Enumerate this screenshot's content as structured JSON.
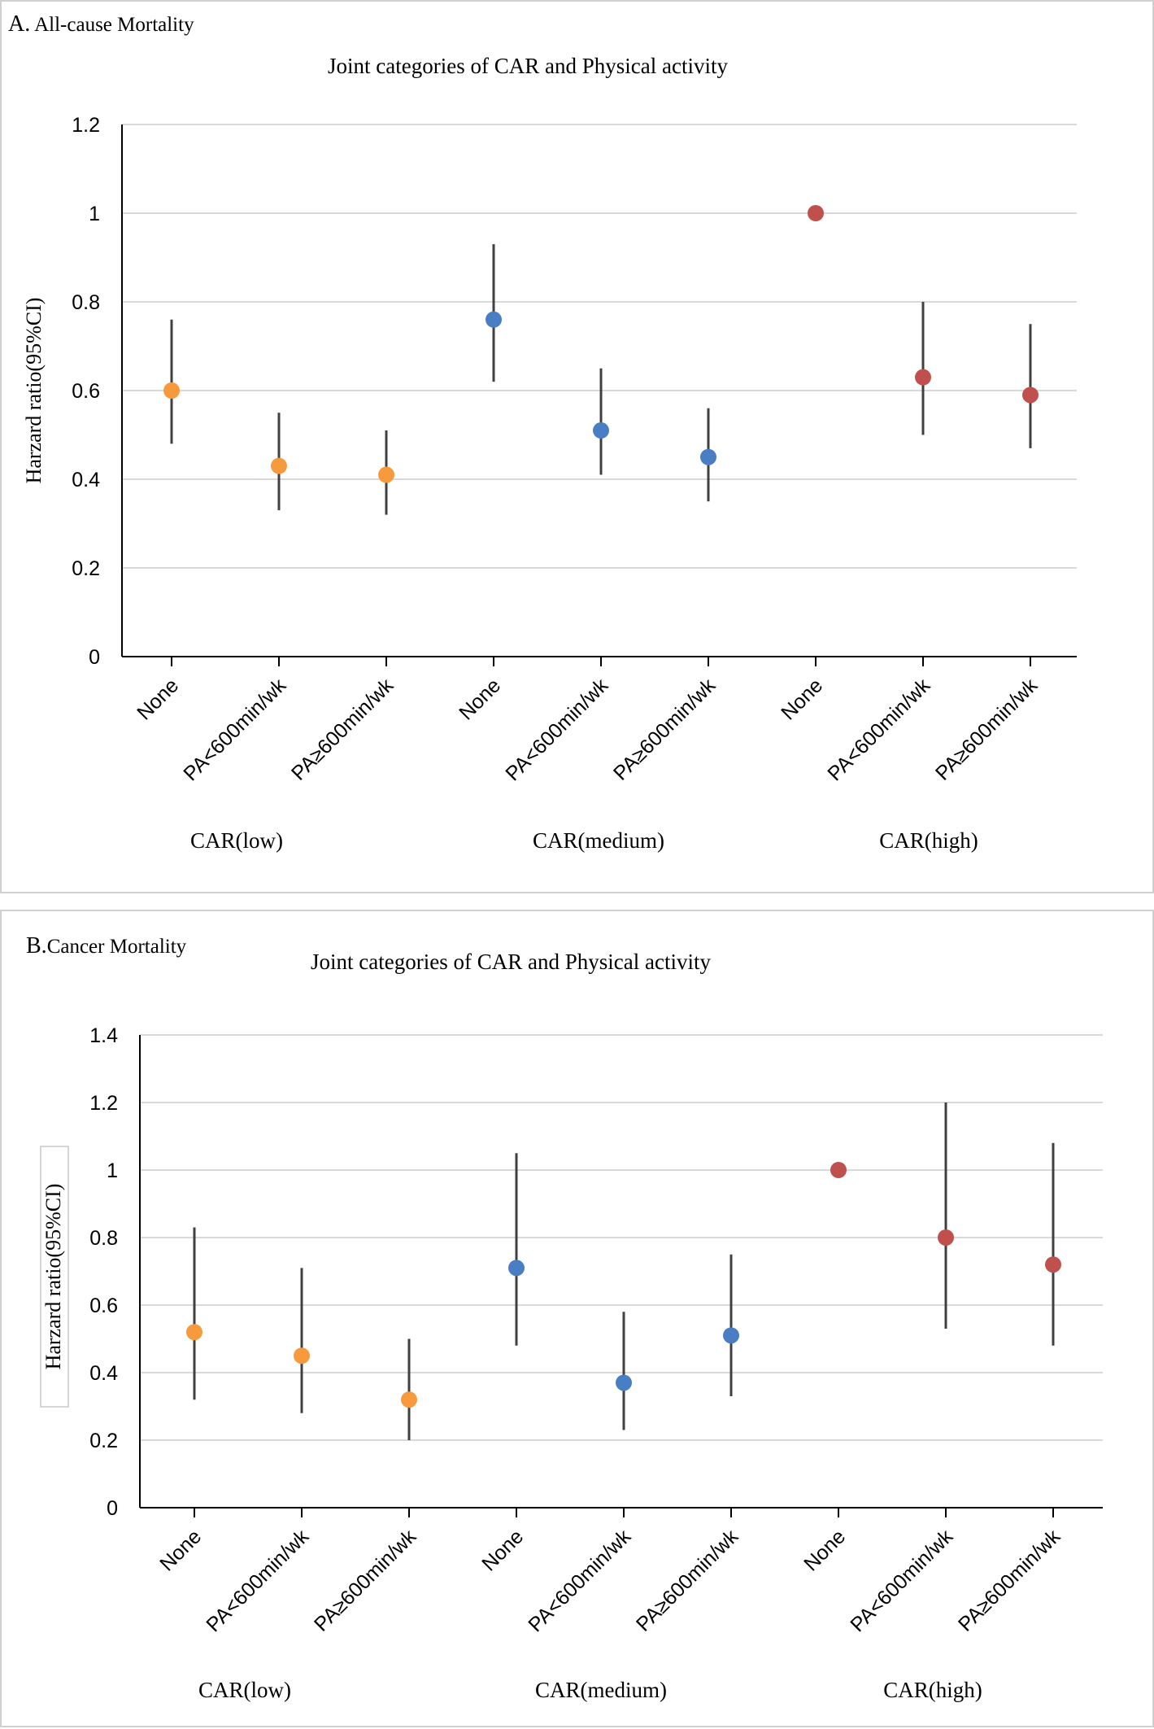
{
  "chart_data": [
    {
      "type": "scatter",
      "panel_label": "A.",
      "panel_title": "All-cause Mortality",
      "title": "Joint categories of CAR and Physical activity",
      "ylabel": "Harzard  ratio(95%CI)",
      "ylim": [
        0,
        1.2
      ],
      "yticks": [
        "0",
        "0.2",
        "0.4",
        "0.6",
        "0.8",
        "1",
        "1.2"
      ],
      "ytick_values": [
        0,
        0.2,
        0.4,
        0.6,
        0.8,
        1,
        1.2
      ],
      "categories": [
        "None",
        "PA<600min/wk",
        "PA≥600min/wk",
        "None",
        "PA<600min/wk",
        "PA≥600min/wk",
        "None",
        "PA<600min/wk",
        "PA≥600min/wk"
      ],
      "groups": [
        "CAR(low)",
        "CAR(medium)",
        "CAR(high)"
      ],
      "group_colors": [
        "#f79a3e",
        "#4a7ec4",
        "#c0504d"
      ],
      "points": [
        {
          "hr": 0.6,
          "lower": 0.48,
          "upper": 0.76
        },
        {
          "hr": 0.43,
          "lower": 0.33,
          "upper": 0.55
        },
        {
          "hr": 0.41,
          "lower": 0.32,
          "upper": 0.51
        },
        {
          "hr": 0.76,
          "lower": 0.62,
          "upper": 0.93
        },
        {
          "hr": 0.51,
          "lower": 0.41,
          "upper": 0.65
        },
        {
          "hr": 0.45,
          "lower": 0.35,
          "upper": 0.56
        },
        {
          "hr": 1.0,
          "lower": 1.0,
          "upper": 1.0
        },
        {
          "hr": 0.63,
          "lower": 0.5,
          "upper": 0.8
        },
        {
          "hr": 0.59,
          "lower": 0.47,
          "upper": 0.75
        }
      ]
    },
    {
      "type": "scatter",
      "panel_label": "B.",
      "panel_title": "Cancer Mortality",
      "title": "Joint categories of CAR and Physical activity",
      "ylabel": "Harzard  ratio(95%CI)",
      "ylim": [
        0,
        1.4
      ],
      "yticks": [
        "0",
        "0.2",
        "0.4",
        "0.6",
        "0.8",
        "1",
        "1.2",
        "1.4"
      ],
      "ytick_values": [
        0,
        0.2,
        0.4,
        0.6,
        0.8,
        1,
        1.2,
        1.4
      ],
      "categories": [
        "None",
        "PA<600min/wk",
        "PA≥600min/wk",
        "None",
        "PA<600min/wk",
        "PA≥600min/wk",
        "None",
        "PA<600min/wk",
        "PA≥600min/wk"
      ],
      "groups": [
        "CAR(low)",
        "CAR(medium)",
        "CAR(high)"
      ],
      "group_colors": [
        "#f79a3e",
        "#4a7ec4",
        "#c0504d"
      ],
      "points": [
        {
          "hr": 0.52,
          "lower": 0.32,
          "upper": 0.83
        },
        {
          "hr": 0.45,
          "lower": 0.28,
          "upper": 0.71
        },
        {
          "hr": 0.32,
          "lower": 0.2,
          "upper": 0.5
        },
        {
          "hr": 0.71,
          "lower": 0.48,
          "upper": 1.05
        },
        {
          "hr": 0.37,
          "lower": 0.23,
          "upper": 0.58
        },
        {
          "hr": 0.51,
          "lower": 0.33,
          "upper": 0.75
        },
        {
          "hr": 1.0,
          "lower": 1.0,
          "upper": 1.0
        },
        {
          "hr": 0.8,
          "lower": 0.53,
          "upper": 1.2
        },
        {
          "hr": 0.72,
          "lower": 0.48,
          "upper": 1.08
        }
      ]
    }
  ]
}
